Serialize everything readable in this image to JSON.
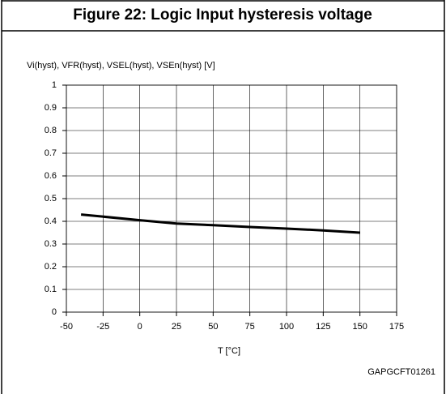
{
  "chart_data": {
    "type": "line",
    "title": "Figure 22: Logic Input hysteresis voltage",
    "y_label": "Vi(hyst), VFR(hyst), VSEL(hyst), VSEn(hyst) [V]",
    "x_label": "T [°C]",
    "annotation": "GAPGCFT01261",
    "x": [
      -40,
      0,
      25,
      50,
      75,
      100,
      125,
      150
    ],
    "values": [
      0.43,
      0.405,
      0.39,
      0.383,
      0.375,
      0.368,
      0.36,
      0.35
    ],
    "color": "#000000",
    "xlim": [
      -50,
      175
    ],
    "xticks": [
      -50,
      -25,
      0,
      25,
      50,
      75,
      100,
      125,
      150,
      175
    ],
    "ylim": [
      0,
      1
    ],
    "yticks": [
      0,
      0.1,
      0.2,
      0.3,
      0.4,
      0.5,
      0.6,
      0.7,
      0.8,
      0.9,
      1
    ],
    "grid": true
  }
}
